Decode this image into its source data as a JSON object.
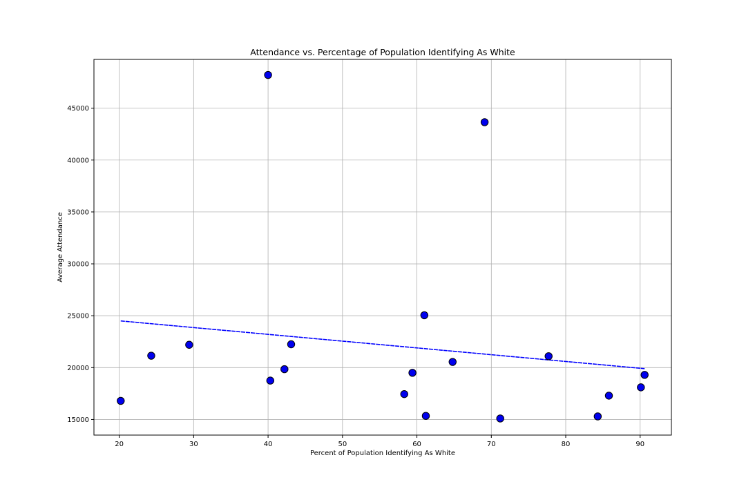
{
  "chart_data": {
    "type": "scatter",
    "title": "Attendance vs. Percentage of Population Identifying As White",
    "xlabel": "Percent of Population Identifying As White",
    "ylabel": "Average Attendance",
    "xlim": [
      16.6,
      94.2
    ],
    "ylim": [
      13500,
      49700
    ],
    "xticks": [
      20,
      30,
      40,
      50,
      60,
      70,
      80,
      90
    ],
    "yticks": [
      15000,
      20000,
      25000,
      30000,
      35000,
      40000,
      45000
    ],
    "grid": true,
    "points": [
      {
        "x": 20.2,
        "y": 16800
      },
      {
        "x": 24.3,
        "y": 21150
      },
      {
        "x": 29.4,
        "y": 22200
      },
      {
        "x": 40.0,
        "y": 48200
      },
      {
        "x": 40.3,
        "y": 18750
      },
      {
        "x": 42.2,
        "y": 19850
      },
      {
        "x": 43.1,
        "y": 22250
      },
      {
        "x": 58.3,
        "y": 17450
      },
      {
        "x": 59.4,
        "y": 19500
      },
      {
        "x": 61.0,
        "y": 25050
      },
      {
        "x": 61.2,
        "y": 15350
      },
      {
        "x": 64.8,
        "y": 20550
      },
      {
        "x": 69.1,
        "y": 43650
      },
      {
        "x": 71.2,
        "y": 15100
      },
      {
        "x": 77.7,
        "y": 21100
      },
      {
        "x": 84.3,
        "y": 15300
      },
      {
        "x": 85.8,
        "y": 17300
      },
      {
        "x": 90.1,
        "y": 18100
      },
      {
        "x": 90.6,
        "y": 19300
      }
    ],
    "trendline": {
      "x": [
        20.2,
        90.6
      ],
      "y": [
        24500,
        19900
      ]
    },
    "colors": {
      "marker_fill": "#0000ee",
      "marker_edge": "#000000",
      "trendline": "#0000ff",
      "grid": "#b0b0b0",
      "axes": "#000000"
    }
  }
}
